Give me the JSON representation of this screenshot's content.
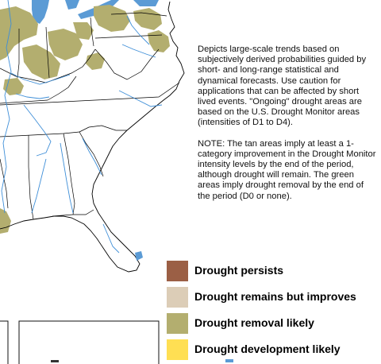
{
  "description": {
    "paragraph1": "Depicts large-scale trends based on subjectively derived probabilities guided by short- and long-range statistical and dynamical forecasts. Use caution for applications that can be affected by short lived events. \"Ongoing\" drought areas are based on the U.S. Drought Monitor areas (intensities of D1 to D4).",
    "paragraph2": "NOTE: The tan areas imply at least a 1-category improvement in the Drought Monitor intensity levels by the end of the period, although drought will remain. The green areas imply drought removal by the end of the period (D0 or none)."
  },
  "legend": {
    "items": [
      {
        "label": "Drought persists",
        "color": "#9b5f45"
      },
      {
        "label": "Drought remains but improves",
        "color": "#dccdb7"
      },
      {
        "label": "Drought removal likely",
        "color": "#b3ae6f"
      },
      {
        "label": "Drought development likely",
        "color": "#ffdf53"
      }
    ]
  },
  "colors": {
    "land": "#ffffff",
    "water": "#5b9bd5",
    "state_border": "#000000",
    "river": "#3f8fd8",
    "removal_green": "#b3ae6f"
  }
}
